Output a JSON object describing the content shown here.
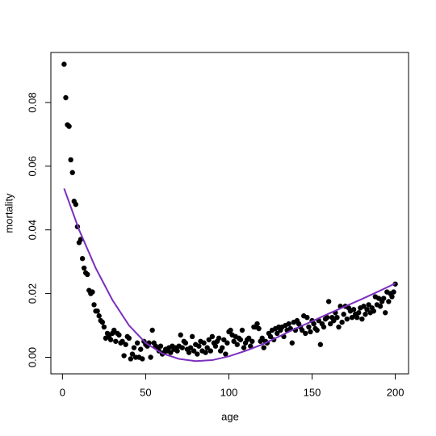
{
  "chart_data": {
    "type": "scatter",
    "x_label": "age",
    "y_label": "mortality",
    "xlim": [
      -6.96,
      207.96
    ],
    "ylim": [
      -0.0052,
      0.0957
    ],
    "xticks": [
      0,
      50,
      100,
      150,
      200
    ],
    "yticks": [
      {
        "value": 0,
        "label": "0.00"
      },
      {
        "value": 0.02,
        "label": "0.02"
      },
      {
        "value": 0.04,
        "label": "0.04"
      },
      {
        "value": 0.06,
        "label": "0.06"
      },
      {
        "value": 0.08,
        "label": "0.08"
      }
    ],
    "series": [
      {
        "type": "scatter",
        "color": "#000000",
        "x": [
          1,
          2,
          3,
          4,
          5,
          6,
          7,
          8,
          9,
          10,
          11,
          12,
          13,
          14,
          15,
          16,
          17,
          18,
          19,
          20,
          21,
          22,
          23,
          24,
          25,
          26,
          27,
          28,
          29,
          30,
          31,
          32,
          33,
          34,
          35,
          36,
          37,
          38,
          39,
          40,
          41,
          42,
          43,
          44,
          45,
          46,
          47,
          48,
          49,
          50,
          51,
          52,
          53,
          54,
          55,
          56,
          57,
          58,
          59,
          60,
          61,
          62,
          63,
          64,
          65,
          66,
          67,
          68,
          69,
          70,
          71,
          72,
          73,
          74,
          75,
          76,
          77,
          78,
          79,
          80,
          81,
          82,
          83,
          84,
          85,
          86,
          87,
          88,
          89,
          90,
          91,
          92,
          93,
          94,
          95,
          96,
          97,
          98,
          99,
          100,
          101,
          102,
          103,
          104,
          105,
          106,
          107,
          108,
          109,
          110,
          111,
          112,
          113,
          114,
          115,
          116,
          117,
          118,
          119,
          120,
          121,
          122,
          123,
          124,
          125,
          126,
          127,
          128,
          129,
          130,
          131,
          132,
          133,
          134,
          135,
          136,
          137,
          138,
          139,
          140,
          141,
          142,
          143,
          144,
          145,
          146,
          147,
          148,
          149,
          150,
          151,
          152,
          153,
          154,
          155,
          156,
          157,
          158,
          159,
          160,
          161,
          162,
          163,
          164,
          165,
          166,
          167,
          168,
          169,
          170,
          171,
          172,
          173,
          174,
          175,
          176,
          177,
          178,
          179,
          180,
          181,
          182,
          183,
          184,
          185,
          186,
          187,
          188,
          189,
          190,
          191,
          192,
          193,
          194,
          195,
          196,
          197,
          198,
          199,
          200
        ],
        "values": [
          0.092,
          0.0815,
          0.073,
          0.0725,
          0.062,
          0.058,
          0.049,
          0.048,
          0.041,
          0.036,
          0.037,
          0.031,
          0.028,
          0.0265,
          0.026,
          0.021,
          0.02,
          0.0205,
          0.0165,
          0.0145,
          0.0145,
          0.013,
          0.0115,
          0.011,
          0.0095,
          0.006,
          0.0075,
          0.0065,
          0.0055,
          0.0075,
          0.0085,
          0.005,
          0.0075,
          0.007,
          0.0045,
          0.005,
          0.0005,
          0.004,
          0.0065,
          0.006,
          -0.0005,
          0.001,
          0.003,
          0,
          0.0045,
          0,
          0.0025,
          -0.0005,
          0.005,
          0.004,
          0.0035,
          0.0045,
          0,
          0.0085,
          0.0045,
          0.0035,
          0.003,
          0.002,
          0.0035,
          0.001,
          0.0015,
          0.0025,
          0.002,
          0.003,
          0.0015,
          0.0035,
          0.0025,
          0.003,
          0.002,
          0.0035,
          0.007,
          0.003,
          0.005,
          0.0045,
          0.0025,
          0.0015,
          0.003,
          0.0065,
          0.002,
          0.004,
          0.001,
          0.0035,
          0.005,
          0.002,
          0.0045,
          0.0015,
          0.003,
          0.0055,
          0.002,
          0.0065,
          0.0045,
          0.0035,
          0.005,
          0.006,
          0.002,
          0.003,
          0.0055,
          0.001,
          0.0045,
          0.008,
          0.0085,
          0.007,
          0.005,
          0.0065,
          0.004,
          0.006,
          0.0055,
          0.0085,
          0.003,
          0.0045,
          0.0055,
          0.006,
          0.0035,
          0.005,
          0.0095,
          0.0095,
          0.0105,
          0.009,
          0.005,
          0.006,
          0.003,
          0.005,
          0.0045,
          0.0075,
          0.0065,
          0.0085,
          0.0055,
          0.009,
          0.0075,
          0.0095,
          0.0085,
          0.0095,
          0.0065,
          0.01,
          0.0085,
          0.0105,
          0.009,
          0.0045,
          0.011,
          0.0085,
          0.0115,
          0.0105,
          0.0095,
          0.0085,
          0.013,
          0.0075,
          0.0125,
          0.0095,
          0.008,
          0.0115,
          0.0105,
          0.009,
          0.0085,
          0.0115,
          0.004,
          0.0105,
          0.0095,
          0.012,
          0.0125,
          0.0175,
          0.0105,
          0.0125,
          0.0115,
          0.014,
          0.0125,
          0.0095,
          0.016,
          0.011,
          0.0135,
          0.016,
          0.012,
          0.0155,
          0.0145,
          0.0125,
          0.015,
          0.0135,
          0.0125,
          0.014,
          0.0155,
          0.012,
          0.016,
          0.0135,
          0.015,
          0.0165,
          0.014,
          0.0155,
          0.0145,
          0.019,
          0.0165,
          0.0185,
          0.016,
          0.0175,
          0.0185,
          0.014,
          0.0205,
          0.0175,
          0.02,
          0.019,
          0.0205,
          0.023
        ]
      },
      {
        "type": "line",
        "color": "#7b2fbe",
        "x": [
          1,
          10,
          20,
          30,
          40,
          50,
          60,
          70,
          80,
          90,
          100,
          110,
          120,
          130,
          140,
          150,
          160,
          170,
          180,
          190,
          200
        ],
        "values": [
          0.053,
          0.04,
          0.028,
          0.018,
          0.01,
          0.0045,
          0.0012,
          -0.0005,
          -0.0012,
          -0.0009,
          0.0003,
          0.002,
          0.004,
          0.0065,
          0.009,
          0.0113,
          0.0137,
          0.016,
          0.0183,
          0.0207,
          0.0232
        ]
      }
    ]
  }
}
